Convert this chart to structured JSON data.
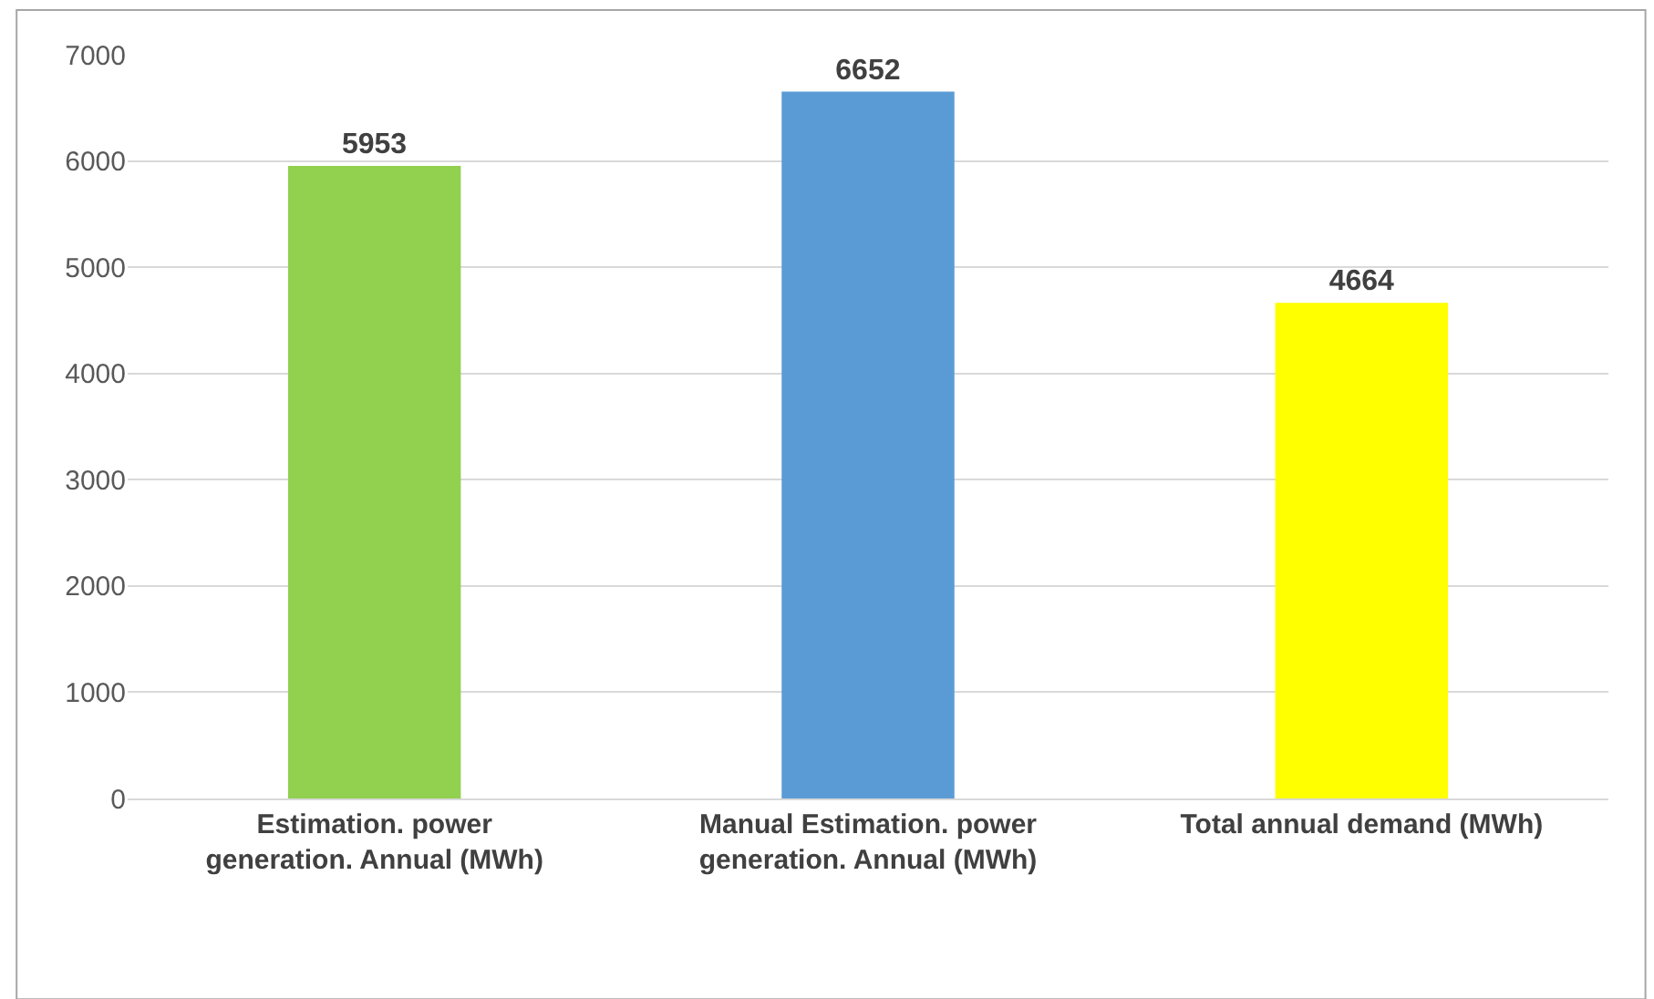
{
  "chart_data": {
    "type": "bar",
    "categories": [
      "Estimation. power generation. Annual (MWh)",
      "Manual Estimation. power generation. Annual (MWh)",
      "Total annual demand (MWh)"
    ],
    "values": [
      5953,
      6652,
      4664
    ],
    "colors": [
      "#92d050",
      "#5b9bd5",
      "#ffff00"
    ],
    "ylim": [
      0,
      7000
    ],
    "yticks": [
      0,
      1000,
      2000,
      3000,
      4000,
      5000,
      6000,
      7000
    ],
    "grid": "y",
    "data_labels": true,
    "legend": false
  }
}
